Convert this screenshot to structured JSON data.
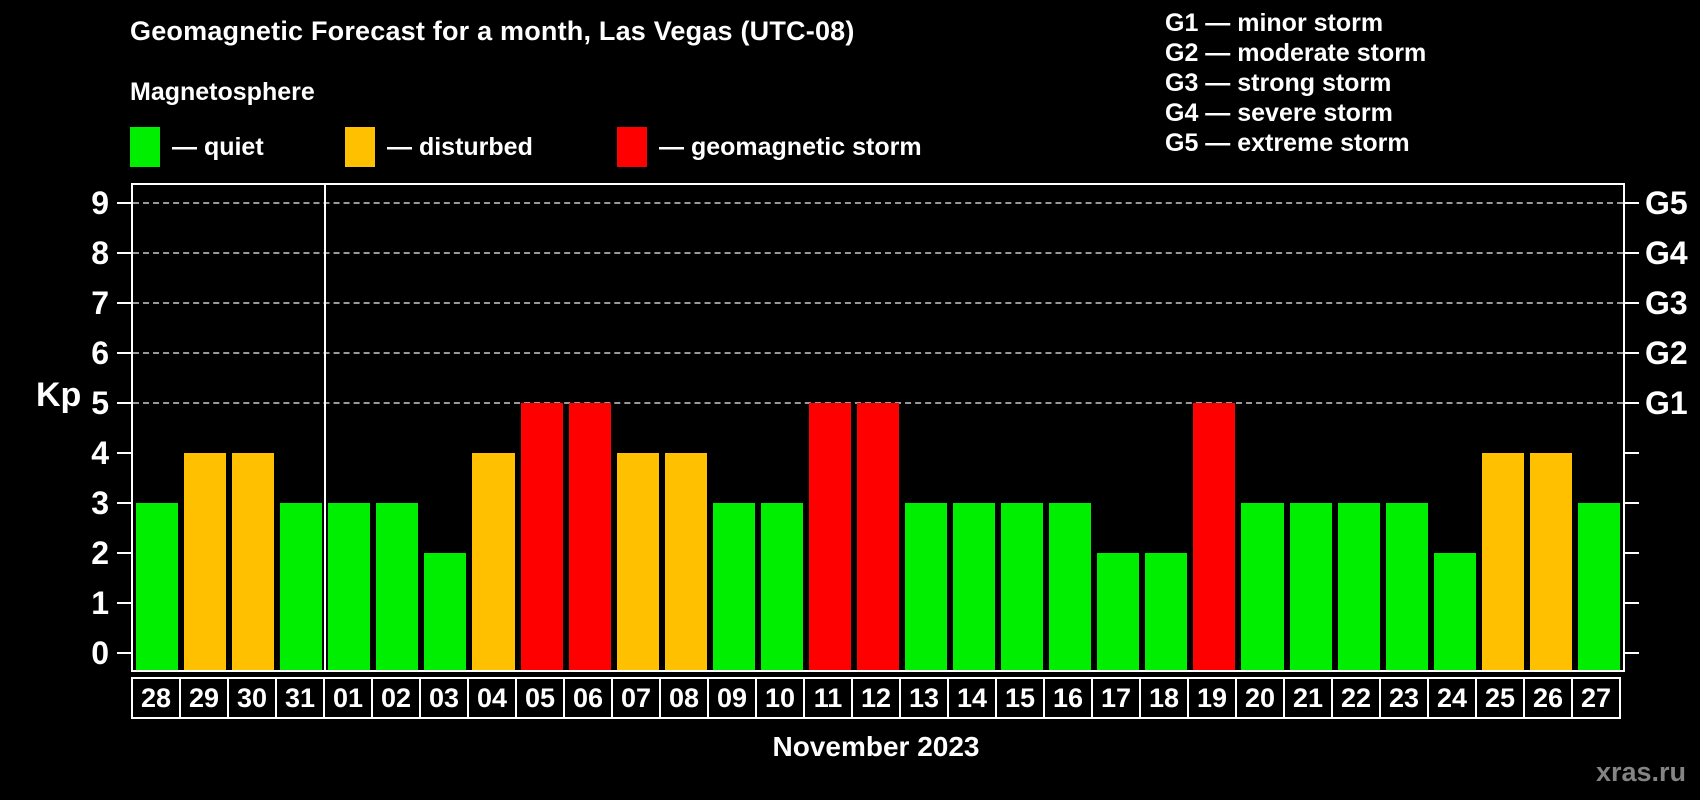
{
  "title": "Geomagnetic Forecast for a month, Las Vegas (UTC-08)",
  "subtitle": "Magnetosphere",
  "legend": {
    "items": [
      {
        "name": "quiet",
        "label": "— quiet",
        "color": "#00ee00"
      },
      {
        "name": "disturbed",
        "label": "— disturbed",
        "color": "#ffc000"
      },
      {
        "name": "storm",
        "label": "— geomagnetic storm",
        "color": "#fe0000"
      }
    ]
  },
  "g_legend": [
    "G1 — minor storm",
    "G2 — moderate storm",
    "G3 — strong storm",
    "G4 — severe storm",
    "G5 — extreme storm"
  ],
  "kp_axis_title": "Kp",
  "xlabel": "November 2023",
  "watermark": "xras.ru",
  "chart_data": {
    "type": "bar",
    "title": "Geomagnetic Forecast for a month, Las Vegas (UTC-08)",
    "ylabel": "Kp",
    "xlabel": "November 2023",
    "ylim": [
      0,
      9
    ],
    "y_ticks": [
      0,
      1,
      2,
      3,
      4,
      5,
      6,
      7,
      8,
      9
    ],
    "gridlines_at": [
      5,
      6,
      7,
      8,
      9
    ],
    "grid": "dashed-horizontal",
    "legend_position": "top",
    "right_axis": [
      {
        "value": 5,
        "label": "G1"
      },
      {
        "value": 6,
        "label": "G2"
      },
      {
        "value": 7,
        "label": "G3"
      },
      {
        "value": 8,
        "label": "G4"
      },
      {
        "value": 9,
        "label": "G5"
      }
    ],
    "month_boundary_after_index": 3,
    "categories": [
      "28",
      "29",
      "30",
      "31",
      "01",
      "02",
      "03",
      "04",
      "05",
      "06",
      "07",
      "08",
      "09",
      "10",
      "11",
      "12",
      "13",
      "14",
      "15",
      "16",
      "17",
      "18",
      "19",
      "20",
      "21",
      "22",
      "23",
      "24",
      "25",
      "26",
      "27"
    ],
    "values": [
      3,
      4,
      4,
      3,
      3,
      3,
      2,
      4,
      5,
      5,
      4,
      4,
      3,
      3,
      5,
      5,
      3,
      3,
      3,
      3,
      2,
      2,
      5,
      3,
      3,
      3,
      3,
      2,
      4,
      4,
      3
    ],
    "statuses": [
      "quiet",
      "disturbed",
      "disturbed",
      "quiet",
      "quiet",
      "quiet",
      "quiet",
      "disturbed",
      "storm",
      "storm",
      "disturbed",
      "disturbed",
      "quiet",
      "quiet",
      "storm",
      "storm",
      "quiet",
      "quiet",
      "quiet",
      "quiet",
      "quiet",
      "quiet",
      "storm",
      "quiet",
      "quiet",
      "quiet",
      "quiet",
      "quiet",
      "disturbed",
      "disturbed",
      "quiet"
    ],
    "colors": {
      "quiet": "#00ee00",
      "disturbed": "#ffc000",
      "storm": "#fe0000"
    }
  }
}
